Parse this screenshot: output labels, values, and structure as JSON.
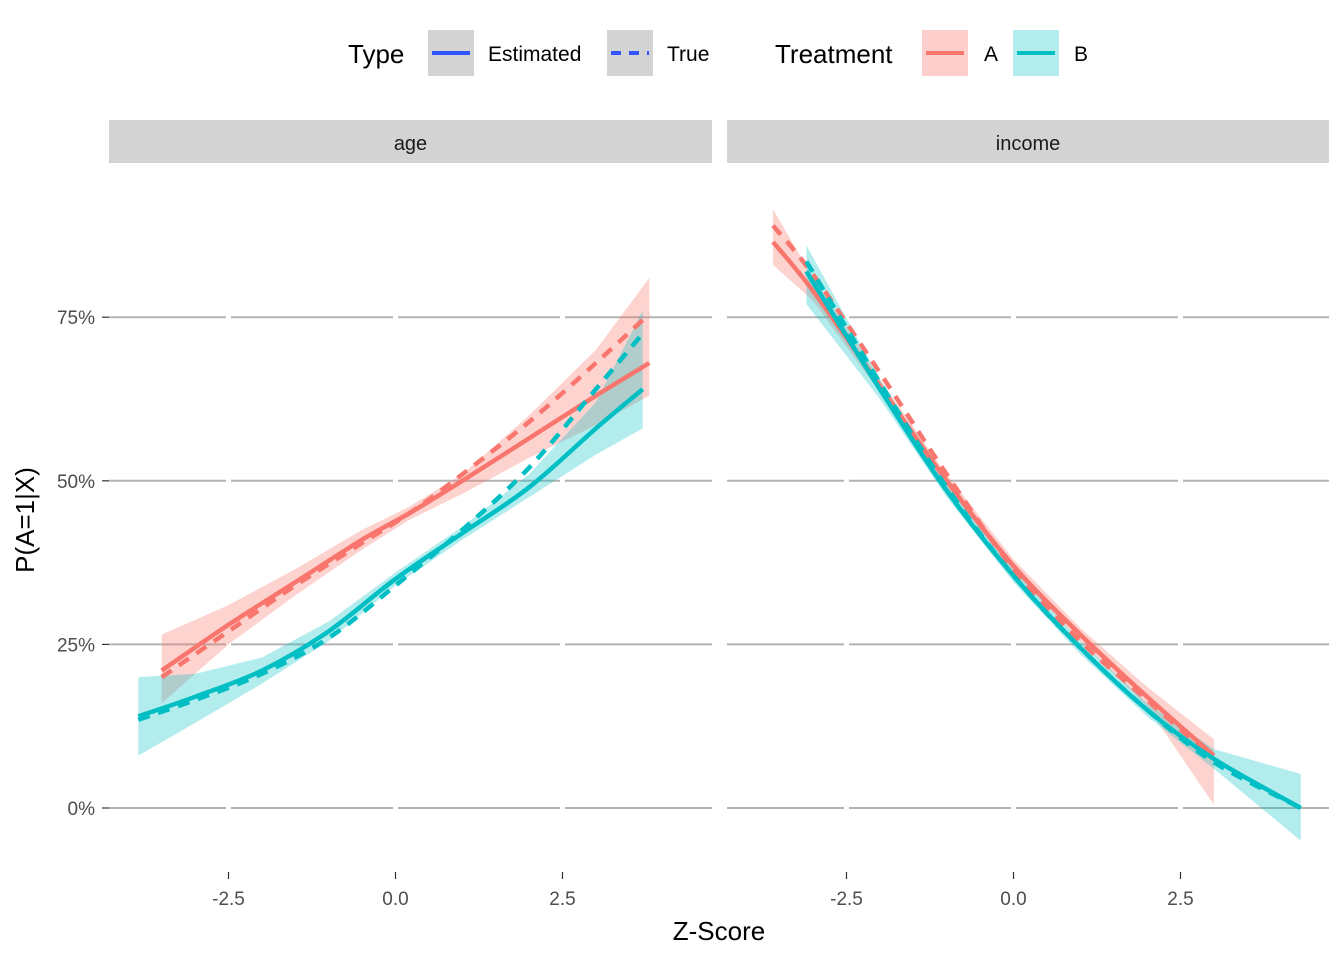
{
  "chart_data": {
    "type": "line",
    "xlabel": "Z-Score",
    "ylabel": "P(A=1|X)",
    "xlim": [
      -4.1,
      4.5
    ],
    "ylim": [
      -0.1,
      0.95
    ],
    "x_ticks": [
      -2.5,
      0.0,
      2.5
    ],
    "x_tick_labels": [
      "-2.5",
      "0.0",
      "2.5"
    ],
    "y_ticks": [
      0,
      0.25,
      0.5,
      0.75
    ],
    "y_tick_labels": [
      "0%",
      "25%",
      "50%",
      "75%"
    ],
    "legend": {
      "placement": "top",
      "type_title": "Type",
      "type_items": [
        {
          "label": "Estimated",
          "dash": "solid"
        },
        {
          "label": "True",
          "dash": "dashed"
        }
      ],
      "treatment_title": "Treatment",
      "treatment_items": [
        {
          "label": "A",
          "color": "#F8766D"
        },
        {
          "label": "B",
          "color": "#00BFC4"
        }
      ],
      "type_key_color": "#3355FF"
    },
    "colors": {
      "A": "#F8766D",
      "B": "#00BFC4"
    },
    "panels": [
      {
        "name": "age",
        "title": "age",
        "series": [
          {
            "name": "A Estimated",
            "treatment": "A",
            "type": "Estimated",
            "x": [
              -3.5,
              -2.5,
              -1.5,
              -0.5,
              0.2,
              1.0,
              2.0,
              3.0,
              3.8
            ],
            "y": [
              0.21,
              0.28,
              0.345,
              0.41,
              0.45,
              0.5,
              0.565,
              0.63,
              0.68
            ],
            "lo": [
              0.16,
              0.25,
              0.325,
              0.395,
              0.44,
              0.48,
              0.535,
              0.585,
              0.63
            ],
            "hi": [
              0.265,
              0.31,
              0.365,
              0.425,
              0.46,
              0.51,
              0.6,
              0.7,
              0.81
            ]
          },
          {
            "name": "A True",
            "treatment": "A",
            "type": "True",
            "x": [
              -3.5,
              -2.5,
              -1.5,
              -0.5,
              0.2,
              1.0,
              2.0,
              3.0,
              3.8
            ],
            "y": [
              0.2,
              0.27,
              0.34,
              0.405,
              0.45,
              0.51,
              0.59,
              0.68,
              0.755
            ]
          },
          {
            "name": "B Estimated",
            "treatment": "B",
            "type": "Estimated",
            "x": [
              -3.85,
              -3.0,
              -2.0,
              -1.0,
              0.0,
              1.0,
              2.0,
              3.0,
              3.7
            ],
            "y": [
              0.14,
              0.17,
              0.21,
              0.27,
              0.35,
              0.42,
              0.49,
              0.58,
              0.64
            ],
            "lo": [
              0.08,
              0.13,
              0.19,
              0.255,
              0.34,
              0.41,
              0.475,
              0.54,
              0.58
            ],
            "hi": [
              0.2,
              0.205,
              0.23,
              0.285,
              0.36,
              0.43,
              0.51,
              0.62,
              0.76
            ]
          },
          {
            "name": "B True",
            "treatment": "B",
            "type": "True",
            "x": [
              -3.85,
              -3.0,
              -2.0,
              -1.0,
              0.0,
              1.0,
              2.0,
              3.0,
              3.7
            ],
            "y": [
              0.135,
              0.165,
              0.205,
              0.26,
              0.34,
              0.425,
              0.52,
              0.64,
              0.725
            ]
          }
        ]
      },
      {
        "name": "income",
        "title": "income",
        "series": [
          {
            "name": "A Estimated",
            "treatment": "A",
            "type": "Estimated",
            "x": [
              -3.6,
              -3.0,
              -2.0,
              -1.0,
              0.0,
              1.0,
              2.0,
              3.0
            ],
            "y": [
              0.865,
              0.79,
              0.645,
              0.5,
              0.37,
              0.265,
              0.17,
              0.08
            ],
            "lo": [
              0.83,
              0.775,
              0.635,
              0.49,
              0.36,
              0.255,
              0.155,
              0.005
            ],
            "hi": [
              0.915,
              0.81,
              0.655,
              0.51,
              0.38,
              0.275,
              0.185,
              0.105
            ]
          },
          {
            "name": "A True",
            "treatment": "A",
            "type": "True",
            "x": [
              -3.6,
              -3.0,
              -2.0,
              -1.0,
              0.0,
              1.0,
              2.0,
              3.0
            ],
            "y": [
              0.89,
              0.815,
              0.665,
              0.51,
              0.365,
              0.255,
              0.165,
              0.075
            ]
          },
          {
            "name": "B Estimated",
            "treatment": "B",
            "type": "Estimated",
            "x": [
              -3.1,
              -2.0,
              -1.0,
              0.0,
              1.0,
              2.0,
              3.0,
              4.3
            ],
            "y": [
              0.82,
              0.64,
              0.485,
              0.355,
              0.245,
              0.15,
              0.075,
              0.0
            ],
            "lo": [
              0.77,
              0.625,
              0.475,
              0.345,
              0.235,
              0.14,
              0.06,
              -0.05
            ],
            "hi": [
              0.86,
              0.655,
              0.495,
              0.365,
              0.255,
              0.16,
              0.09,
              0.052
            ]
          },
          {
            "name": "B True",
            "treatment": "B",
            "type": "True",
            "x": [
              -3.1,
              -2.0,
              -1.0,
              0.0,
              1.0,
              2.0,
              3.0,
              4.3
            ],
            "y": [
              0.835,
              0.65,
              0.49,
              0.355,
              0.245,
              0.15,
              0.07,
              0.0
            ]
          }
        ]
      }
    ]
  }
}
